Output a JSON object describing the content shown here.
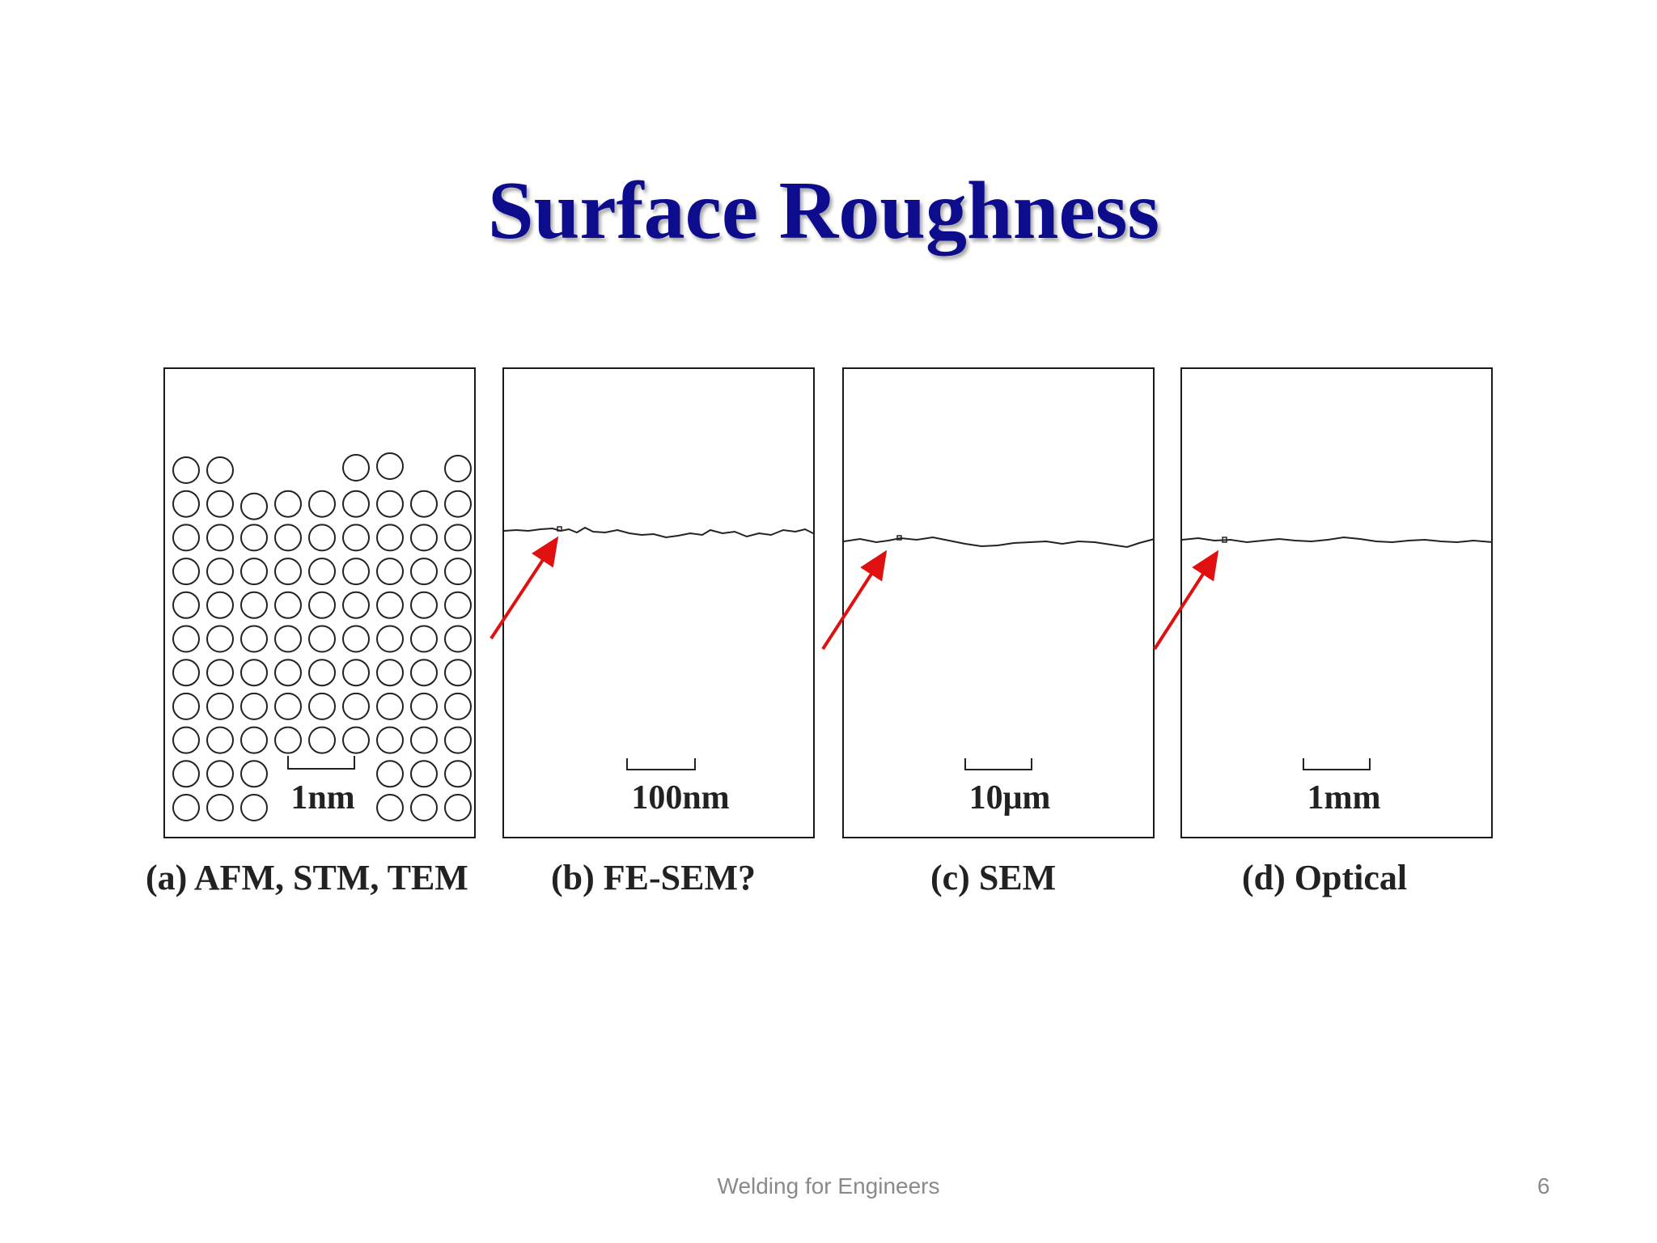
{
  "slide": {
    "title": "Surface Roughness",
    "footer": "Welding for Engineers",
    "page_number": "6"
  },
  "panels": [
    {
      "id": "a",
      "scale_label": "1nm",
      "caption": "(a) AFM, STM, TEM"
    },
    {
      "id": "b",
      "scale_label": "100nm",
      "caption": "(b) FE-SEM?"
    },
    {
      "id": "c",
      "scale_label": "10μm",
      "caption": "(c) SEM"
    },
    {
      "id": "d",
      "scale_label": "1mm",
      "caption": "(d) Optical"
    }
  ],
  "colors": {
    "title": "#0c0c8c",
    "arrow": "#e01010",
    "outline": "#1a1a1a"
  }
}
